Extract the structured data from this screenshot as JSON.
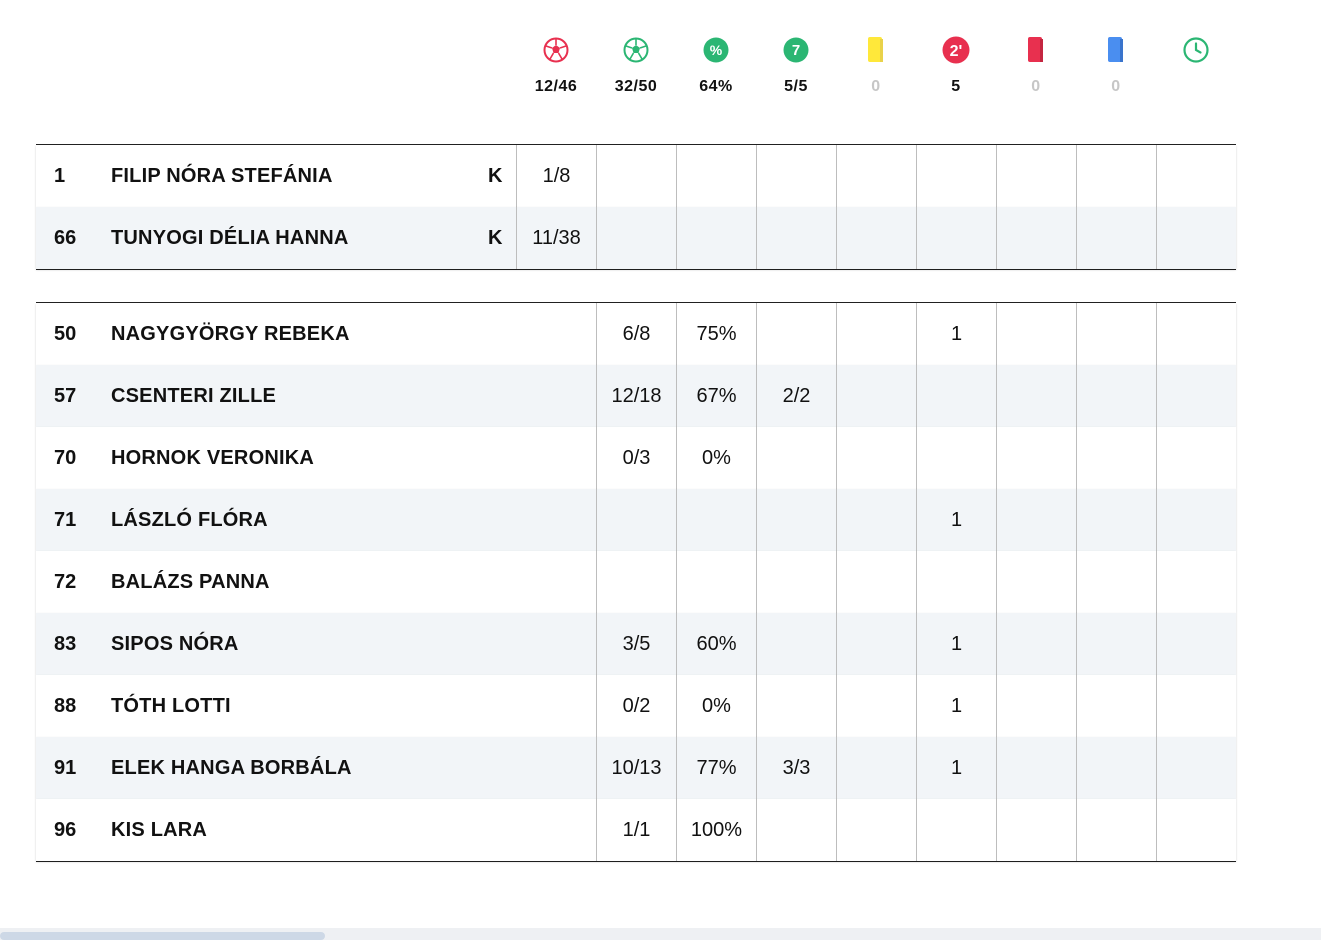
{
  "totals": [
    {
      "icon": "ball-red-icon",
      "value": "12/46",
      "muted": false
    },
    {
      "icon": "ball-green-icon",
      "value": "32/50",
      "muted": false
    },
    {
      "icon": "percent-icon",
      "value": "64%",
      "muted": false
    },
    {
      "icon": "seven-meter-icon",
      "value": "5/5",
      "muted": false
    },
    {
      "icon": "yellow-card-icon",
      "value": "0",
      "muted": true
    },
    {
      "icon": "two-minute-icon",
      "value": "5",
      "muted": false
    },
    {
      "icon": "red-card-icon",
      "value": "0",
      "muted": true
    },
    {
      "icon": "blue-card-icon",
      "value": "0",
      "muted": true
    },
    {
      "icon": "clock-icon",
      "value": "",
      "muted": false
    }
  ],
  "header_icons": {
    "seven_label": "7",
    "percent_label": "%",
    "two_label": "2'"
  },
  "colors": {
    "red": "#e8304f",
    "green": "#2bb673",
    "yellow": "#ffe83a",
    "blue": "#4a8ef0"
  },
  "goalkeepers": [
    {
      "number": "1",
      "name": "FILIP NÓRA STEFÁNIA",
      "role": "K",
      "saves": "1/8",
      "cells": [
        "",
        "",
        "",
        "",
        "",
        "",
        "",
        "",
        ""
      ]
    },
    {
      "number": "66",
      "name": "TUNYOGI DÉLIA HANNA",
      "role": "K",
      "saves": "11/38",
      "cells": [
        "",
        "",
        "",
        "",
        "",
        "",
        "",
        "",
        ""
      ]
    }
  ],
  "players": [
    {
      "number": "50",
      "name": "NAGYGYÖRGY REBEKA",
      "cells": [
        "6/8",
        "75%",
        "",
        "",
        "1",
        "",
        "",
        ""
      ]
    },
    {
      "number": "57",
      "name": "CSENTERI ZILLE",
      "cells": [
        "12/18",
        "67%",
        "2/2",
        "",
        "",
        "",
        "",
        ""
      ]
    },
    {
      "number": "70",
      "name": "HORNOK VERONIKA",
      "cells": [
        "0/3",
        "0%",
        "",
        "",
        "",
        "",
        "",
        ""
      ]
    },
    {
      "number": "71",
      "name": "LÁSZLÓ FLÓRA",
      "cells": [
        "",
        "",
        "",
        "",
        "1",
        "",
        "",
        ""
      ]
    },
    {
      "number": "72",
      "name": "BALÁZS PANNA",
      "cells": [
        "",
        "",
        "",
        "",
        "",
        "",
        "",
        ""
      ]
    },
    {
      "number": "83",
      "name": "SIPOS NÓRA",
      "cells": [
        "3/5",
        "60%",
        "",
        "",
        "1",
        "",
        "",
        ""
      ]
    },
    {
      "number": "88",
      "name": "TÓTH LOTTI",
      "cells": [
        "0/2",
        "0%",
        "",
        "",
        "1",
        "",
        "",
        ""
      ]
    },
    {
      "number": "91",
      "name": "ELEK HANGA BORBÁLA",
      "cells": [
        "10/13",
        "77%",
        "3/3",
        "",
        "1",
        "",
        "",
        ""
      ]
    },
    {
      "number": "96",
      "name": "KIS LARA",
      "cells": [
        "1/1",
        "100%",
        "",
        "",
        "",
        "",
        "",
        ""
      ]
    }
  ]
}
